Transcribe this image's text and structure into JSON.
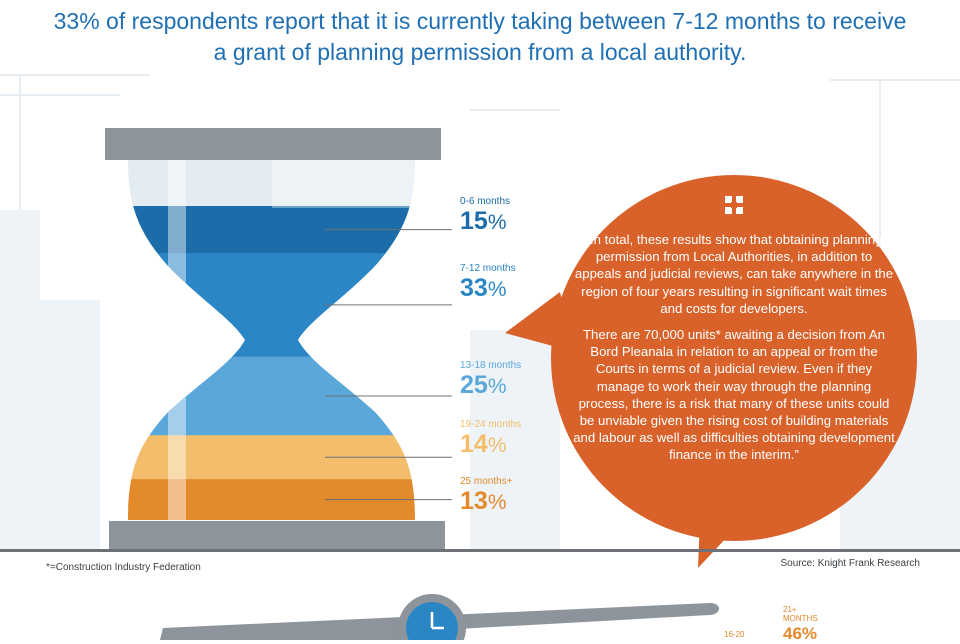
{
  "headline": {
    "line1": "33% of respondents report that it is currently taking between 7-12 months to receive",
    "line2": "a grant of planning permission from a local authority."
  },
  "colors": {
    "dark_blue": "#1b6ca8",
    "mid_blue": "#2b86c5",
    "light_blue": "#5aa7da",
    "light_orange": "#f3bd6c",
    "orange": "#e38a2c",
    "bubble": "#d9622b",
    "frame": "#8d949b",
    "headline": "#1e6fb3"
  },
  "chart_data": {
    "type": "bar",
    "title": "33% of respondents report that it is currently taking between 7-12 months to receive a grant of planning permission from a local authority.",
    "categories": [
      "0-6 months",
      "7-12 months",
      "13-18 months",
      "19-24 months",
      "25 months+"
    ],
    "series": [
      {
        "values": [
          15,
          33,
          25,
          14,
          13
        ]
      }
    ],
    "unit": "%",
    "value_labels": [
      "15",
      "33",
      "25",
      "14",
      "13"
    ],
    "legend": "none",
    "grid": false
  },
  "bubble": {
    "paragraph1": "“In total, these results show that obtaining planning permission from Local Authorities, in addition to appeals and judicial reviews, can take anywhere in the region of four years resulting in significant wait times and costs for developers.",
    "paragraph2": "There are 70,000 units* awaiting a decision from An Bord Pleanala in relation to an appeal or from the Courts in terms of a judicial review. Even if they manage to work their way through the planning process, there is a risk that many of these units could be unviable given the rising cost of building materials and labour as well as difficulties obtaining development finance in the interim.”"
  },
  "footnote": "*=Construction Industry Federation",
  "source": "Source: Knight Frank Research",
  "bottom": {
    "label_16_20": "16-20",
    "label_21_line1": "21+",
    "label_21_line2": "MONTHS",
    "value_21": "46%"
  }
}
